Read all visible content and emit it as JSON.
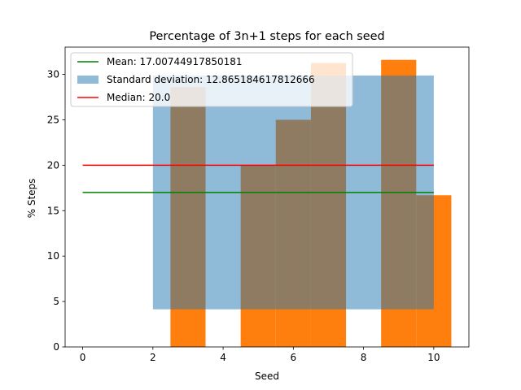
{
  "chart_data": {
    "type": "bar",
    "title": "Percentage of 3n+1 steps for each seed",
    "xlabel": "Seed",
    "ylabel": "% Steps",
    "xlim": [
      -0.5,
      11.0
    ],
    "ylim": [
      0,
      33.0
    ],
    "xticks": [
      0,
      2,
      4,
      6,
      8,
      10
    ],
    "yticks": [
      0,
      5,
      10,
      15,
      20,
      25,
      30
    ],
    "grid": false,
    "legend_position": "top-left",
    "bars": {
      "x": [
        1,
        2,
        3,
        4,
        5,
        6,
        7,
        8,
        9,
        10
      ],
      "values": [
        0,
        0,
        28.6,
        0,
        20.0,
        25.0,
        31.25,
        0,
        31.6,
        16.7
      ],
      "width": 1.0,
      "color": "#ff7f0e"
    },
    "std_band": {
      "label": "Standard deviation: 12.865184617812666",
      "x_start": 2,
      "x_end": 10,
      "y_low": 4.142266560689144,
      "y_high": 29.872635796314476,
      "color": "#1f77b4",
      "alpha": 0.5
    },
    "mean_line": {
      "label": "Mean: 17.00744917850181",
      "value": 17.00744917850181,
      "x_start": 0,
      "x_end": 10,
      "color": "#008000"
    },
    "median_line": {
      "label": "Median: 20.0",
      "value": 20.0,
      "x_start": 0,
      "x_end": 10,
      "color": "#ff0000"
    }
  }
}
